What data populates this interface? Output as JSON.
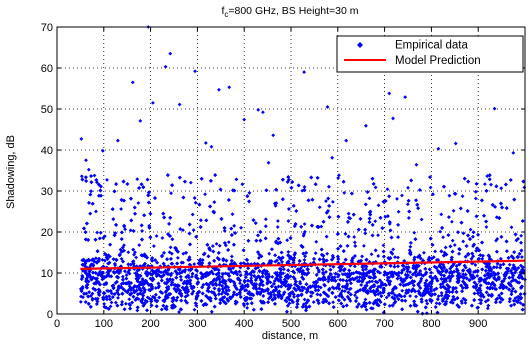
{
  "chart_data": {
    "type": "scatter",
    "title": "f_c=800 GHz, BS Height=30 m",
    "title_main": "f",
    "title_sub": "c",
    "title_rest": "=800 GHz, BS Height=30 m",
    "xlabel": "distance, m",
    "ylabel": "Shadowing, dB",
    "xlim": [
      0,
      1000
    ],
    "ylim": [
      0,
      70
    ],
    "xticks": [
      0,
      100,
      200,
      300,
      400,
      500,
      600,
      700,
      800,
      900
    ],
    "yticks": [
      0,
      10,
      20,
      30,
      40,
      50,
      60,
      70
    ],
    "grid": true,
    "legend": {
      "placement": "top-right",
      "entries": [
        "Empirical data",
        "Model Prediction"
      ]
    },
    "colors": {
      "empirical": "#0000ff",
      "model": "#ff0000"
    },
    "series": [
      {
        "name": "Empirical data",
        "kind": "scatter",
        "x_range": [
          50,
          1000
        ],
        "dense_band": [
          0,
          27
        ],
        "outliers": [
          {
            "x": 52,
            "y": 42.7
          },
          {
            "x": 62,
            "y": 37.5
          },
          {
            "x": 68,
            "y": 35.2
          },
          {
            "x": 98,
            "y": 39.8
          },
          {
            "x": 130,
            "y": 42.3
          },
          {
            "x": 162,
            "y": 56.5
          },
          {
            "x": 178,
            "y": 47.1
          },
          {
            "x": 195,
            "y": 70.0
          },
          {
            "x": 205,
            "y": 51.5
          },
          {
            "x": 232,
            "y": 60.3
          },
          {
            "x": 242,
            "y": 63.5
          },
          {
            "x": 262,
            "y": 51.1
          },
          {
            "x": 295,
            "y": 59.2
          },
          {
            "x": 318,
            "y": 41.7
          },
          {
            "x": 346,
            "y": 54.7
          },
          {
            "x": 368,
            "y": 55.3
          },
          {
            "x": 400,
            "y": 47.4
          },
          {
            "x": 430,
            "y": 49.8
          },
          {
            "x": 440,
            "y": 49.2
          },
          {
            "x": 462,
            "y": 43.6
          },
          {
            "x": 528,
            "y": 59.0
          },
          {
            "x": 578,
            "y": 50.5
          },
          {
            "x": 618,
            "y": 42.3
          },
          {
            "x": 660,
            "y": 45.9
          },
          {
            "x": 710,
            "y": 53.8
          },
          {
            "x": 718,
            "y": 47.7
          },
          {
            "x": 744,
            "y": 52.9
          },
          {
            "x": 815,
            "y": 40.3
          },
          {
            "x": 852,
            "y": 41.6
          },
          {
            "x": 935,
            "y": 50.1
          },
          {
            "x": 975,
            "y": 39.3
          },
          {
            "x": 588,
            "y": 38.1
          },
          {
            "x": 452,
            "y": 36.9
          },
          {
            "x": 330,
            "y": 40.8
          },
          {
            "x": 768,
            "y": 36.4
          }
        ]
      },
      {
        "name": "Model Prediction",
        "kind": "line",
        "x": [
          50,
          1000
        ],
        "y": [
          11.0,
          13.0
        ]
      }
    ]
  }
}
